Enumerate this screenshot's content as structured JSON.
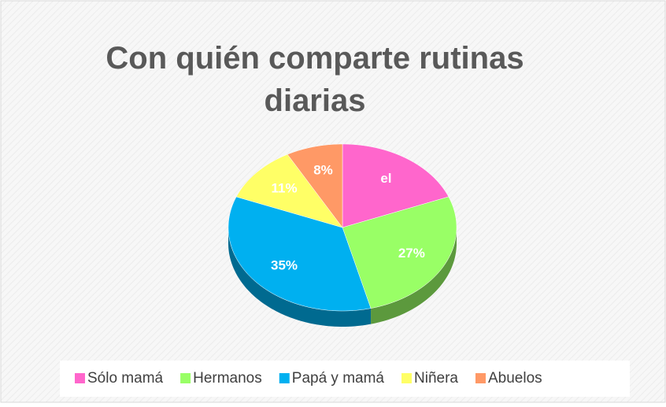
{
  "chart_data": {
    "type": "pie",
    "title": "Con quién comparte rutinas diarias",
    "categories": [
      "Sólo mamá",
      "Hermanos",
      "Papá y mamá",
      "Niñera",
      "Abuelos"
    ],
    "values": [
      19,
      27,
      35,
      11,
      8
    ],
    "value_labels": [
      "el",
      "27%",
      "35%",
      "11%",
      "8%"
    ],
    "colors": [
      "#ff66cc",
      "#99ff66",
      "#00b0f0",
      "#ffff66",
      "#ff9966"
    ],
    "legend": "bottom"
  }
}
